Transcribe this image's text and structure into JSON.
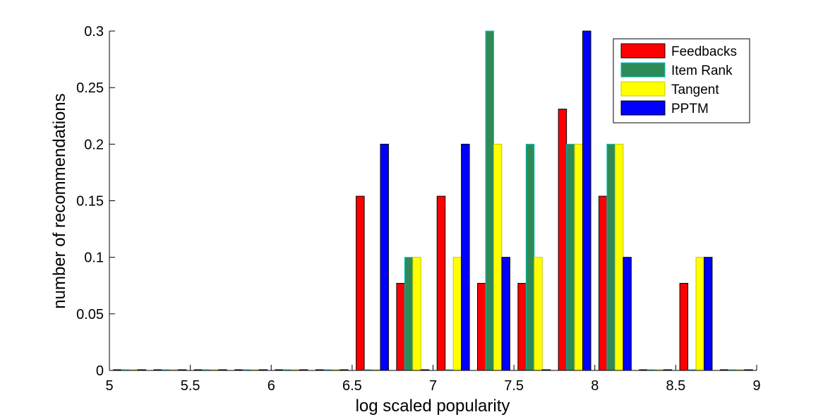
{
  "chart_data": {
    "type": "bar",
    "xlabel": "log scaled popularity",
    "ylabel": "number of recommendations",
    "xlim": [
      5,
      9
    ],
    "ylim": [
      0,
      0.3
    ],
    "xticks": [
      "5",
      "5.5",
      "6",
      "6.5",
      "7",
      "7.5",
      "8",
      "8.5",
      "9"
    ],
    "yticks": [
      "0",
      "0.05",
      "0.1",
      "0.15",
      "0.2",
      "0.25",
      "0.3"
    ],
    "bin_centers": [
      5.125,
      5.375,
      5.625,
      5.875,
      6.125,
      6.375,
      6.625,
      6.875,
      7.125,
      7.375,
      7.625,
      7.875,
      8.125,
      8.375,
      8.625,
      8.875
    ],
    "series": [
      {
        "name": "Feedbacks",
        "color": "#ff0000",
        "edge": "#000000",
        "values": [
          0,
          0,
          0,
          0,
          0,
          0,
          0.154,
          0.077,
          0.154,
          0.077,
          0.077,
          0.231,
          0.154,
          0,
          0.077,
          0
        ]
      },
      {
        "name": "Item Rank",
        "color": "#2e8b57",
        "edge": "#00bfbf",
        "values": [
          0,
          0,
          0,
          0,
          0,
          0,
          0,
          0.1,
          0,
          0.3,
          0.2,
          0.2,
          0.2,
          0,
          0,
          0
        ]
      },
      {
        "name": "Tangent",
        "color": "#ffff00",
        "edge": "#c8c800",
        "values": [
          0,
          0,
          0,
          0,
          0,
          0,
          0,
          0.1,
          0.1,
          0.2,
          0.1,
          0.2,
          0.2,
          0,
          0.1,
          0
        ]
      },
      {
        "name": "PPTM",
        "color": "#0000ff",
        "edge": "#000000",
        "values": [
          0,
          0,
          0,
          0,
          0,
          0,
          0.2,
          0,
          0.2,
          0.1,
          0,
          0.3,
          0.1,
          0,
          0.1,
          0
        ]
      }
    ],
    "grid": false,
    "legend_position": "top-right"
  }
}
